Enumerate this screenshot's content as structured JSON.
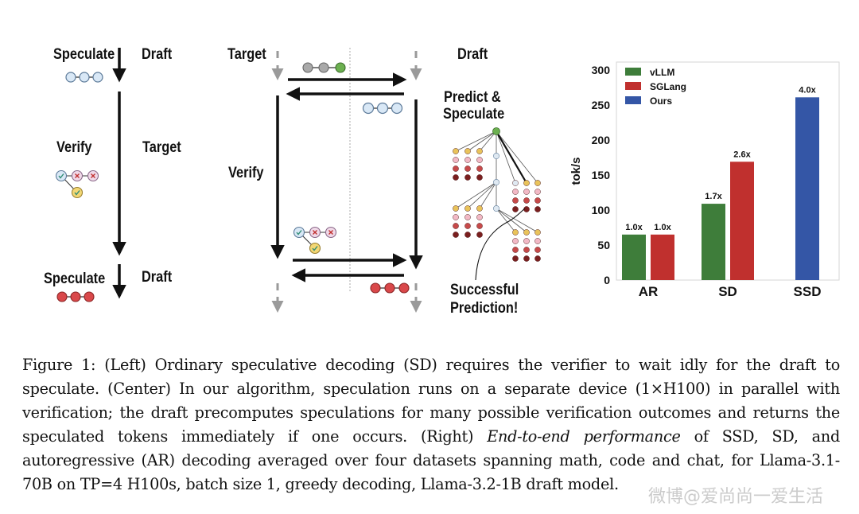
{
  "left_panel": {
    "speculate_top": "Speculate",
    "draft_top": "Draft",
    "verify": "Verify",
    "target": "Target",
    "speculate_bottom": "Speculate",
    "draft_bottom": "Draft"
  },
  "center_panel": {
    "target": "Target",
    "draft": "Draft",
    "verify": "Verify",
    "predict": "Predict &",
    "speculate": "Speculate",
    "successful": "Successful",
    "prediction": "Prediction!"
  },
  "chart_data": {
    "type": "bar",
    "categories": [
      "AR",
      "SD",
      "SSD"
    ],
    "series": [
      {
        "name": "vLLM",
        "color": "#3e7d3a",
        "values": [
          65,
          109,
          null
        ],
        "labels": [
          "1.0x",
          "1.7x",
          ""
        ]
      },
      {
        "name": "SGLang",
        "color": "#c0302e",
        "values": [
          65,
          169,
          null
        ],
        "labels": [
          "1.0x",
          "2.6x",
          ""
        ]
      },
      {
        "name": "Ours",
        "color": "#3456a6",
        "values": [
          null,
          null,
          261
        ],
        "labels": [
          "",
          "",
          "4.0x"
        ]
      }
    ],
    "ylabel": "tok/s",
    "xlabel": "",
    "ylim": [
      0,
      300
    ],
    "yticks": [
      "0",
      "50",
      "100",
      "150",
      "200",
      "250",
      "300"
    ],
    "legend_position": "top-left"
  },
  "caption": {
    "text_1": "Figure 1: (Left) Ordinary speculative decoding (SD) requires the verifier to wait idly for the draft to speculate. (Center) In our algorithm, speculation runs on a separate device (1×H100) in parallel with verification; the draft precomputes speculations for many possible verification outcomes and returns the speculated tokens immediately if one occurs. (Right) ",
    "emph": "End-to-end performance",
    "text_2": " of SSD, SD, and autoregressive (AR) decoding averaged over four datasets spanning math, code and chat, for Llama-3.1-70B on TP=4 H100s, batch size 1, greedy decoding, Llama-3.2-1B draft model."
  },
  "watermark": "微博@爱尚尚一爱生活"
}
